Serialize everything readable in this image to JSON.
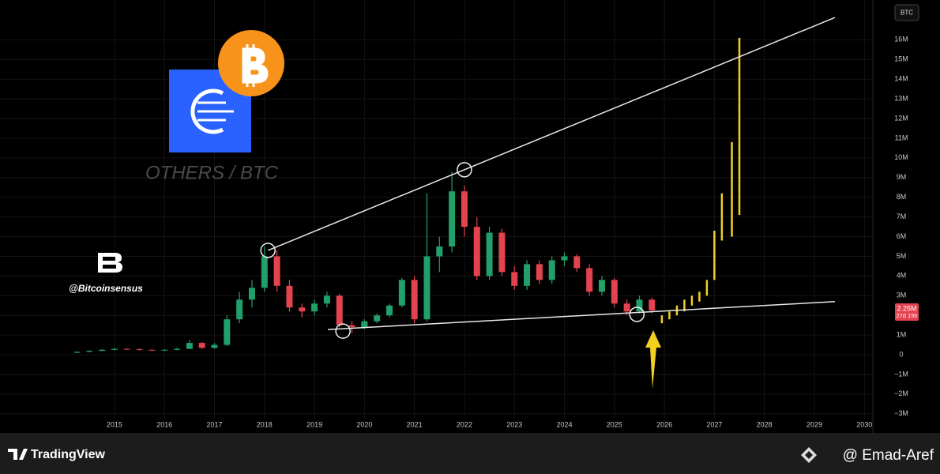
{
  "chart_data": {
    "type": "candlestick",
    "symbol": "BTC",
    "watermark": "OTHERS / BTC",
    "handle": "@Bitcoinsensus",
    "x": [
      2014.25,
      2014.5,
      2014.75,
      2015.0,
      2015.25,
      2015.5,
      2015.75,
      2016.0,
      2016.25,
      2016.5,
      2016.75,
      2017.0,
      2017.25,
      2017.5,
      2017.75,
      2018.0,
      2018.25,
      2018.5,
      2018.75,
      2019.0,
      2019.25,
      2019.5,
      2019.75,
      2020.0,
      2020.25,
      2020.5,
      2020.75,
      2021.0,
      2021.25,
      2021.5,
      2021.75,
      2022.0,
      2022.25,
      2022.5,
      2022.75,
      2023.0,
      2023.25,
      2023.5,
      2023.75,
      2024.0,
      2024.25,
      2024.5,
      2024.75,
      2025.0,
      2025.25,
      2025.5,
      2025.75
    ],
    "open": [
      100000,
      150000,
      200000,
      250000,
      300000,
      280000,
      250000,
      220000,
      250000,
      300000,
      600000,
      350000,
      500000,
      1800000,
      2800000,
      3400000,
      5000000,
      3500000,
      2400000,
      2200000,
      2600000,
      3000000,
      1500000,
      1400000,
      1700000,
      2000000,
      2500000,
      3800000,
      1800000,
      5000000,
      5500000,
      8300000,
      6500000,
      4000000,
      6200000,
      4200000,
      3500000,
      4600000,
      3800000,
      4800000,
      5000000,
      4400000,
      3200000,
      3800000,
      2600000,
      2200000,
      2800000
    ],
    "high": [
      160000,
      220000,
      280000,
      340000,
      330000,
      310000,
      270000,
      280000,
      350000,
      750000,
      650000,
      600000,
      2000000,
      3200000,
      3800000,
      5500000,
      5300000,
      3800000,
      2600000,
      2800000,
      3200000,
      3100000,
      1700000,
      1800000,
      2100000,
      2600000,
      3900000,
      4000000,
      8200000,
      6000000,
      9300000,
      8600000,
      7000000,
      6500000,
      6400000,
      4500000,
      4800000,
      4800000,
      5000000,
      5200000,
      5100000,
      4600000,
      4000000,
      3900000,
      2800000,
      3000000,
      2900000
    ],
    "low": [
      80000,
      120000,
      170000,
      220000,
      250000,
      220000,
      180000,
      190000,
      220000,
      280000,
      300000,
      300000,
      450000,
      1600000,
      2400000,
      3200000,
      3200000,
      2200000,
      1900000,
      2000000,
      2400000,
      1400000,
      1100000,
      1300000,
      1600000,
      1900000,
      2400000,
      1600000,
      1700000,
      4200000,
      5200000,
      6000000,
      3800000,
      3800000,
      4000000,
      3300000,
      3300000,
      3600000,
      3600000,
      4500000,
      4200000,
      3000000,
      3000000,
      2400000,
      2000000,
      2100000,
      2100000
    ],
    "close": [
      150000,
      200000,
      250000,
      300000,
      280000,
      250000,
      220000,
      250000,
      300000,
      600000,
      350000,
      500000,
      1800000,
      2800000,
      3400000,
      5000000,
      3500000,
      2400000,
      2200000,
      2600000,
      3000000,
      1500000,
      1400000,
      1700000,
      2000000,
      2500000,
      3800000,
      1800000,
      5000000,
      5500000,
      8300000,
      6500000,
      4000000,
      6200000,
      4200000,
      3500000,
      4600000,
      3800000,
      4800000,
      5000000,
      4400000,
      3200000,
      3800000,
      2600000,
      2200000,
      2800000,
      2250000
    ],
    "up_color": "#22a06b",
    "down_color": "#e2434f",
    "projection": {
      "color": "#f2d022",
      "x": [
        2025.95,
        2026.1,
        2026.25,
        2026.4,
        2026.55,
        2026.7,
        2026.85,
        2027.0,
        2027.15,
        2027.35,
        2027.5
      ],
      "low": [
        1600000,
        1800000,
        2000000,
        2200000,
        2500000,
        2700000,
        3000000,
        3800000,
        5800000,
        6000000,
        7100000
      ],
      "high": [
        2000000,
        2200000,
        2500000,
        2800000,
        3000000,
        3200000,
        3800000,
        6300000,
        8200000,
        10800000,
        16100000
      ]
    },
    "trendlines": [
      {
        "x": [
          2018.07,
          2029.41
        ],
        "y": [
          5300000,
          17130000
        ]
      },
      {
        "x": [
          2019.27,
          2029.41
        ],
        "y": [
          1280000,
          2700000
        ]
      }
    ],
    "touch_points": {
      "x": [
        2018.07,
        2019.57,
        2022.0,
        2025.45
      ],
      "y": [
        5300000,
        1200000,
        9400000,
        2050000
      ]
    },
    "last_price": {
      "value": 2250000,
      "label": "2.25M"
    },
    "countdown": "27d 15h",
    "xlim": [
      2012.71,
      2030.17
    ],
    "xticks": [
      2015,
      2016,
      2017,
      2018,
      2019,
      2020,
      2021,
      2022,
      2023,
      2024,
      2025,
      2026,
      2027,
      2028,
      2029,
      2030
    ],
    "ylim": [
      -3450000,
      17700000
    ],
    "yticks": [
      {
        "value": -3000000,
        "label": "−3M"
      },
      {
        "value": -2000000,
        "label": "−2M"
      },
      {
        "value": -1000000,
        "label": "−1M"
      },
      0,
      {
        "value": 1000000,
        "label": "1M"
      },
      {
        "value": 2000000,
        "label": "2M"
      },
      {
        "value": 3000000,
        "label": "3M"
      },
      {
        "value": 4000000,
        "label": "4M"
      },
      {
        "value": 5000000,
        "label": "5M"
      },
      {
        "value": 6000000,
        "label": "6M"
      },
      {
        "value": 7000000,
        "label": "7M"
      },
      {
        "value": 8000000,
        "label": "8M"
      },
      {
        "value": 9000000,
        "label": "9M"
      },
      {
        "value": 10000000,
        "label": "10M"
      },
      {
        "value": 11000000,
        "label": "11M"
      },
      {
        "value": 12000000,
        "label": "12M"
      },
      {
        "value": 13000000,
        "label": "13M"
      },
      {
        "value": 14000000,
        "label": "14M"
      },
      {
        "value": 15000000,
        "label": "15M"
      },
      {
        "value": 16000000,
        "label": "16M"
      }
    ]
  },
  "footer": {
    "platform": "TradingView",
    "author": "@ Emad-Aref"
  }
}
